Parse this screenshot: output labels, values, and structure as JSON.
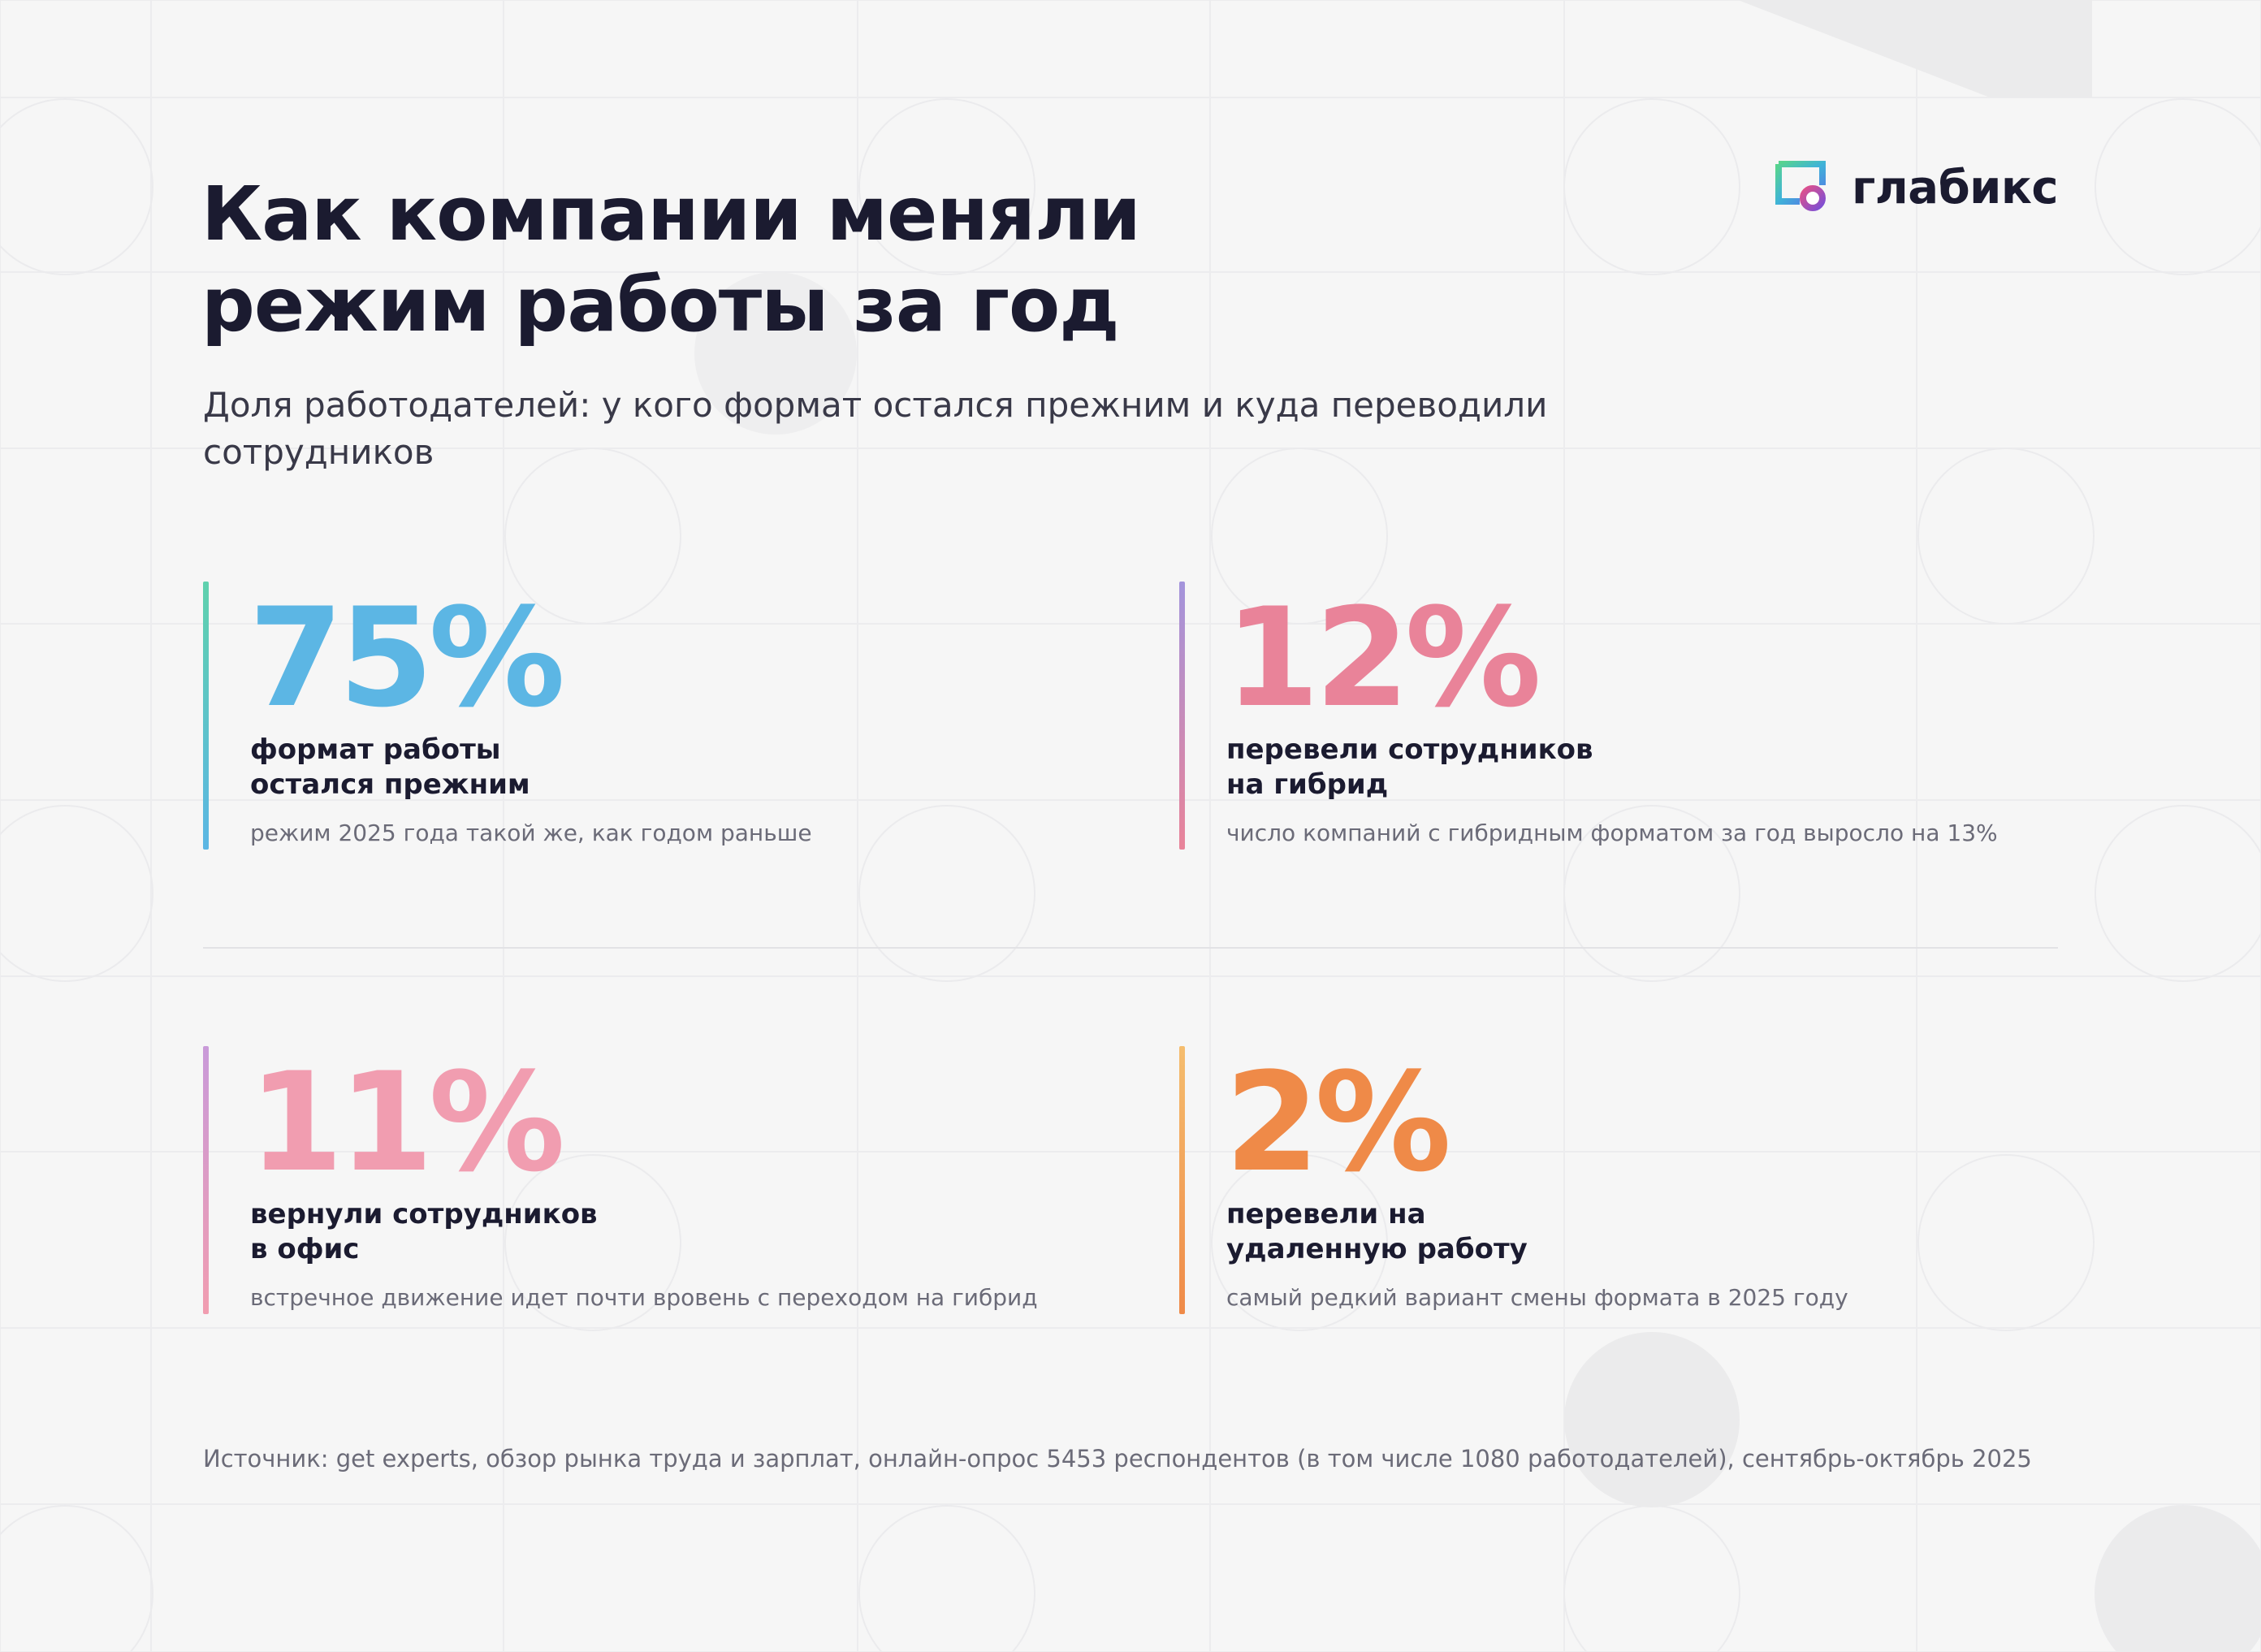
{
  "brand": {
    "name": "глабикс",
    "logo_icon": "glabix-logo-icon",
    "colors": {
      "dark": "#1b1b30",
      "blue": "#5cb6e4",
      "pink": "#e98399",
      "light_pink": "#f19db0",
      "orange": "#ef8a48"
    }
  },
  "header": {
    "title_line1": "Как компании меняли",
    "title_line2": "режим работы за год",
    "subtitle_line1": "Доля работодателей: у кого формат остался прежним и куда переводили",
    "subtitle_line2": "сотрудников"
  },
  "stats": [
    {
      "value": "75%",
      "label_line1": "формат работы",
      "label_line2": "остался прежним",
      "note": "режим 2025 года такой же, как годом раньше",
      "color": "#5cb6e4"
    },
    {
      "value": "12%",
      "label_line1": "перевели сотрудников",
      "label_line2": "на гибрид",
      "note": "число компаний с гибридным форматом за год выросло на 13%",
      "color": "#e98399"
    },
    {
      "value": "11%",
      "label_line1": "вернули сотрудников",
      "label_line2": "в офис",
      "note": "встречное движение идет почти вровень с переходом на гибрид",
      "color": "#f19db0"
    },
    {
      "value": "2%",
      "label_line1": "перевели на",
      "label_line2": "удаленную работу",
      "note": "самый редкий вариант смены формата в 2025 году",
      "color": "#ef8a48"
    }
  ],
  "footer": {
    "source": "Источник: get experts, обзор рынка труда и зарплат, онлайн-опрос 5453 респондентов (в том числе 1080 работодателей), сентябрь-октябрь 2025"
  }
}
